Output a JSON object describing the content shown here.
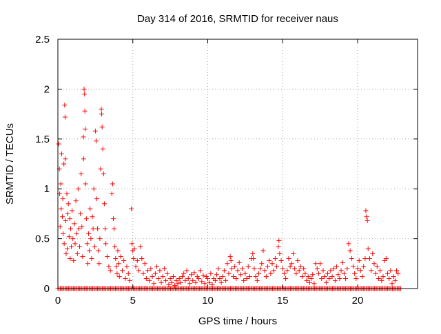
{
  "chart_data": {
    "type": "scatter",
    "title": "Day 314 of 2016, SRMTID for receiver naus",
    "xlabel": "GPS time / hours",
    "ylabel": "SRMTID / TECUs",
    "xlim": [
      0,
      24
    ],
    "ylim": [
      0,
      2.5
    ],
    "xticks": [
      0,
      5,
      10,
      15,
      20
    ],
    "xtick_labels": [
      "0",
      "5",
      "10",
      "15",
      "20"
    ],
    "yticks": [
      0,
      0.5,
      1,
      1.5,
      2,
      2.5
    ],
    "ytick_labels": [
      "0",
      "0.5",
      "1",
      "1.5",
      "2",
      "2.5"
    ],
    "grid": true,
    "marker": "+",
    "series": [
      {
        "name": "SRMTID",
        "color": "#ff0000",
        "points": [
          [
            0.05,
            1.45
          ],
          [
            0.1,
            1.2
          ],
          [
            0.12,
            0.95
          ],
          [
            0.15,
            0.62
          ],
          [
            0.2,
            1.05
          ],
          [
            0.22,
            0.8
          ],
          [
            0.25,
            1.35
          ],
          [
            0.3,
            0.72
          ],
          [
            0.33,
            0.9
          ],
          [
            0.35,
            0.55
          ],
          [
            0.4,
            1.25
          ],
          [
            0.42,
            0.45
          ],
          [
            0.45,
            1.84
          ],
          [
            0.48,
            1.72
          ],
          [
            0.5,
            1.3
          ],
          [
            0.52,
            0.68
          ],
          [
            0.55,
            0.35
          ],
          [
            0.6,
            0.95
          ],
          [
            0.62,
            0.4
          ],
          [
            0.65,
            0.75
          ],
          [
            0.7,
            0.85
          ],
          [
            0.75,
            0.52
          ],
          [
            0.8,
            0.7
          ],
          [
            0.82,
            0.3
          ],
          [
            0.85,
            0.6
          ],
          [
            0.9,
            0.42
          ],
          [
            0.95,
            0.78
          ],
          [
            1.0,
            0.5
          ],
          [
            1.05,
            0.28
          ],
          [
            1.1,
            0.65
          ],
          [
            1.15,
            0.45
          ],
          [
            1.2,
            0.88
          ],
          [
            1.25,
            0.55
          ],
          [
            1.3,
            0.35
          ],
          [
            1.35,
            1.0
          ],
          [
            1.4,
            0.6
          ],
          [
            1.45,
            0.42
          ],
          [
            1.5,
            0.75
          ],
          [
            1.55,
            1.15
          ],
          [
            1.6,
            0.62
          ],
          [
            1.65,
            0.32
          ],
          [
            1.7,
            1.52
          ],
          [
            1.72,
            1.3
          ],
          [
            1.75,
            2.0
          ],
          [
            1.78,
            1.95
          ],
          [
            1.8,
            1.78
          ],
          [
            1.82,
            1.6
          ],
          [
            1.85,
            1.05
          ],
          [
            1.9,
            0.7
          ],
          [
            1.95,
            0.45
          ],
          [
            2.0,
            0.25
          ],
          [
            2.05,
            0.55
          ],
          [
            2.1,
            0.38
          ],
          [
            2.15,
            0.8
          ],
          [
            2.2,
            0.5
          ],
          [
            2.25,
            0.3
          ],
          [
            2.3,
            0.72
          ],
          [
            2.35,
            0.6
          ],
          [
            2.4,
            1.0
          ],
          [
            2.45,
            0.42
          ],
          [
            2.5,
            1.58
          ],
          [
            2.55,
            1.48
          ],
          [
            2.6,
            0.9
          ],
          [
            2.65,
            0.6
          ],
          [
            2.7,
            0.38
          ],
          [
            2.75,
            0.25
          ],
          [
            2.8,
            0.5
          ],
          [
            2.85,
            1.2
          ],
          [
            2.9,
            1.8
          ],
          [
            2.92,
            1.75
          ],
          [
            2.95,
            1.62
          ],
          [
            3.0,
            1.4
          ],
          [
            3.05,
            1.15
          ],
          [
            3.1,
            0.85
          ],
          [
            3.15,
            0.6
          ],
          [
            3.2,
            0.45
          ],
          [
            3.3,
            0.32
          ],
          [
            3.4,
            0.22
          ],
          [
            3.5,
            0.18
          ],
          [
            3.6,
            0.95
          ],
          [
            3.65,
            1.05
          ],
          [
            3.7,
            0.7
          ],
          [
            3.75,
            0.6
          ],
          [
            3.8,
            0.42
          ],
          [
            3.85,
            0.3
          ],
          [
            3.9,
            0.22
          ],
          [
            3.95,
            0.15
          ],
          [
            4.0,
            0.38
          ],
          [
            4.05,
            0.25
          ],
          [
            4.1,
            0.12
          ],
          [
            4.2,
            0.32
          ],
          [
            4.3,
            0.18
          ],
          [
            4.4,
            0.28
          ],
          [
            4.5,
            0.1
          ],
          [
            4.6,
            0.22
          ],
          [
            4.7,
            0.15
          ],
          [
            4.8,
            0.08
          ],
          [
            4.9,
            0.8
          ],
          [
            4.95,
            0.45
          ],
          [
            5.0,
            0.38
          ],
          [
            5.05,
            0.3
          ],
          [
            5.1,
            0.4
          ],
          [
            5.2,
            0.22
          ],
          [
            5.3,
            0.28
          ],
          [
            5.4,
            0.18
          ],
          [
            5.5,
            0.42
          ],
          [
            5.6,
            0.3
          ],
          [
            5.7,
            0.15
          ],
          [
            5.8,
            0.25
          ],
          [
            5.9,
            0.1
          ],
          [
            6.0,
            0.18
          ],
          [
            6.1,
            0.08
          ],
          [
            6.2,
            0.2
          ],
          [
            6.3,
            0.12
          ],
          [
            6.4,
            0.05
          ],
          [
            6.5,
            0.15
          ],
          [
            6.6,
            0.22
          ],
          [
            6.7,
            0.1
          ],
          [
            6.8,
            0.18
          ],
          [
            6.9,
            0.06
          ],
          [
            7.0,
            0.12
          ],
          [
            7.1,
            0.2
          ],
          [
            7.2,
            0.08
          ],
          [
            7.3,
            0.15
          ],
          [
            7.4,
            0.04
          ],
          [
            7.5,
            0.1
          ],
          [
            7.6,
            0.06
          ],
          [
            7.7,
            0.12
          ],
          [
            7.8,
            0.03
          ],
          [
            7.9,
            0.08
          ],
          [
            8.0,
            0.05
          ],
          [
            8.1,
            0.1
          ],
          [
            8.2,
            0.06
          ],
          [
            8.3,
            0.12
          ],
          [
            8.4,
            0.15
          ],
          [
            8.5,
            0.08
          ],
          [
            8.6,
            0.18
          ],
          [
            8.7,
            0.1
          ],
          [
            8.8,
            0.05
          ],
          [
            8.9,
            0.14
          ],
          [
            9.0,
            0.08
          ],
          [
            9.1,
            0.16
          ],
          [
            9.2,
            0.06
          ],
          [
            9.3,
            0.12
          ],
          [
            9.4,
            0.1
          ],
          [
            9.5,
            0.18
          ],
          [
            9.6,
            0.07
          ],
          [
            9.7,
            0.13
          ],
          [
            9.8,
            0.05
          ],
          [
            9.9,
            0.12
          ],
          [
            10.0,
            0.1
          ],
          [
            10.1,
            0.06
          ],
          [
            10.2,
            0.15
          ],
          [
            10.3,
            0.04
          ],
          [
            10.4,
            0.1
          ],
          [
            10.5,
            0.08
          ],
          [
            10.6,
            0.14
          ],
          [
            10.7,
            0.2
          ],
          [
            10.8,
            0.1
          ],
          [
            10.9,
            0.06
          ],
          [
            11.0,
            0.12
          ],
          [
            11.1,
            0.18
          ],
          [
            11.2,
            0.08
          ],
          [
            11.3,
            0.25
          ],
          [
            11.4,
            0.15
          ],
          [
            11.5,
            0.32
          ],
          [
            11.55,
            0.28
          ],
          [
            11.6,
            0.2
          ],
          [
            11.7,
            0.12
          ],
          [
            11.8,
            0.22
          ],
          [
            11.9,
            0.1
          ],
          [
            12.0,
            0.18
          ],
          [
            12.1,
            0.26
          ],
          [
            12.2,
            0.14
          ],
          [
            12.3,
            0.2
          ],
          [
            12.4,
            0.08
          ],
          [
            12.5,
            0.15
          ],
          [
            12.6,
            0.1
          ],
          [
            12.7,
            0.22
          ],
          [
            12.8,
            0.12
          ],
          [
            12.9,
            0.3
          ],
          [
            13.0,
            0.35
          ],
          [
            13.05,
            0.3
          ],
          [
            13.1,
            0.2
          ],
          [
            13.2,
            0.12
          ],
          [
            13.3,
            0.08
          ],
          [
            13.4,
            0.15
          ],
          [
            13.5,
            0.2
          ],
          [
            13.6,
            0.25
          ],
          [
            13.7,
            0.38
          ],
          [
            13.8,
            0.18
          ],
          [
            13.9,
            0.12
          ],
          [
            14.0,
            0.22
          ],
          [
            14.1,
            0.28
          ],
          [
            14.2,
            0.15
          ],
          [
            14.3,
            0.25
          ],
          [
            14.4,
            0.18
          ],
          [
            14.5,
            0.3
          ],
          [
            14.6,
            0.22
          ],
          [
            14.7,
            0.42
          ],
          [
            14.75,
            0.48
          ],
          [
            14.8,
            0.35
          ],
          [
            14.9,
            0.28
          ],
          [
            15.0,
            0.2
          ],
          [
            15.1,
            0.15
          ],
          [
            15.2,
            0.1
          ],
          [
            15.3,
            0.18
          ],
          [
            15.4,
            0.3
          ],
          [
            15.5,
            0.22
          ],
          [
            15.6,
            0.25
          ],
          [
            15.7,
            0.35
          ],
          [
            15.8,
            0.2
          ],
          [
            15.9,
            0.15
          ],
          [
            16.0,
            0.28
          ],
          [
            16.1,
            0.18
          ],
          [
            16.2,
            0.22
          ],
          [
            16.3,
            0.12
          ],
          [
            16.4,
            0.2
          ],
          [
            16.5,
            0.15
          ],
          [
            16.6,
            0.08
          ],
          [
            16.7,
            0.12
          ],
          [
            16.8,
            0.06
          ],
          [
            16.9,
            0.1
          ],
          [
            17.0,
            0.14
          ],
          [
            17.1,
            0.05
          ],
          [
            17.2,
            0.25
          ],
          [
            17.3,
            0.2
          ],
          [
            17.4,
            0.15
          ],
          [
            17.5,
            0.25
          ],
          [
            17.6,
            0.1
          ],
          [
            17.7,
            0.18
          ],
          [
            17.8,
            0.12
          ],
          [
            17.9,
            0.06
          ],
          [
            18.0,
            0.15
          ],
          [
            18.1,
            0.1
          ],
          [
            18.2,
            0.18
          ],
          [
            18.3,
            0.12
          ],
          [
            18.4,
            0.2
          ],
          [
            18.5,
            0.08
          ],
          [
            18.6,
            0.22
          ],
          [
            18.7,
            0.14
          ],
          [
            18.8,
            0.1
          ],
          [
            18.9,
            0.18
          ],
          [
            19.0,
            0.26
          ],
          [
            19.1,
            0.15
          ],
          [
            19.2,
            0.1
          ],
          [
            19.3,
            0.2
          ],
          [
            19.4,
            0.45
          ],
          [
            19.5,
            0.38
          ],
          [
            19.6,
            0.3
          ],
          [
            19.7,
            0.22
          ],
          [
            19.8,
            0.15
          ],
          [
            19.9,
            0.1
          ],
          [
            20.0,
            0.2
          ],
          [
            20.1,
            0.28
          ],
          [
            20.2,
            0.18
          ],
          [
            20.3,
            0.12
          ],
          [
            20.4,
            0.22
          ],
          [
            20.5,
            0.3
          ],
          [
            20.55,
            0.78
          ],
          [
            20.6,
            0.72
          ],
          [
            20.65,
            0.68
          ],
          [
            20.7,
            0.4
          ],
          [
            20.8,
            0.3
          ],
          [
            20.9,
            0.18
          ],
          [
            21.0,
            0.35
          ],
          [
            21.1,
            0.25
          ],
          [
            21.2,
            0.15
          ],
          [
            21.3,
            0.22
          ],
          [
            21.4,
            0.1
          ],
          [
            21.5,
            0.18
          ],
          [
            21.6,
            0.08
          ],
          [
            21.7,
            0.12
          ],
          [
            21.8,
            0.28
          ],
          [
            21.9,
            0.3
          ],
          [
            22.0,
            0.15
          ],
          [
            22.1,
            0.1
          ],
          [
            22.2,
            0.18
          ],
          [
            22.3,
            0.05
          ],
          [
            22.4,
            0.12
          ],
          [
            22.5,
            0.08
          ],
          [
            22.6,
            0.18
          ],
          [
            22.7,
            0.15
          ]
        ],
        "zero_line_hours": [
          0,
          22.9
        ]
      }
    ]
  }
}
